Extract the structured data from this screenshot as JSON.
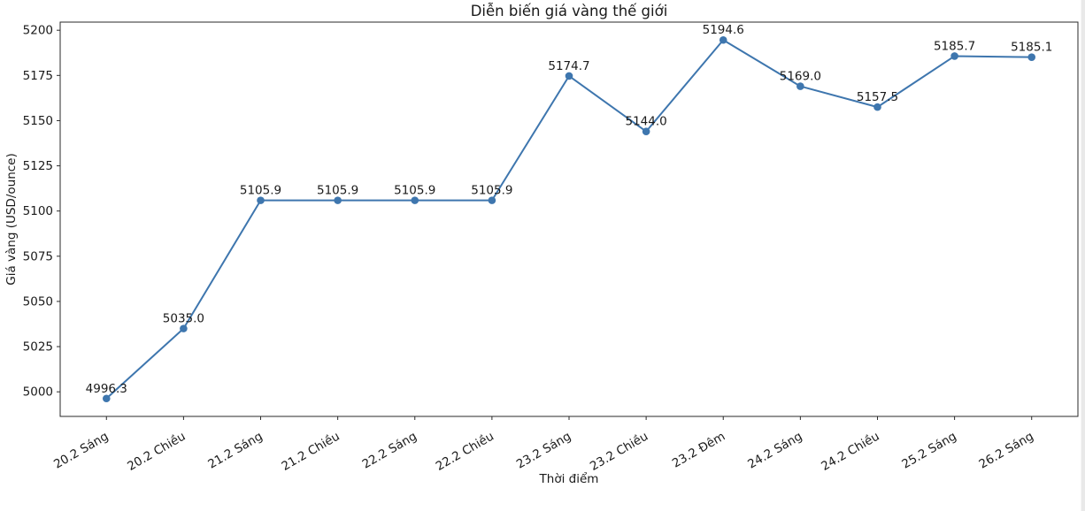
{
  "chart_data": {
    "type": "line",
    "title": "Diễn biến giá vàng thế giới",
    "xlabel": "Thời điểm",
    "ylabel": "Giá vàng (USD/ounce)",
    "categories": [
      "20.2 Sáng",
      "20.2 Chiều",
      "21.2 Sáng",
      "21.2 Chiều",
      "22.2 Sáng",
      "22.2 Chiều",
      "23.2 Sáng",
      "23.2 Chiều",
      "23.2 Đêm",
      "24.2 Sáng",
      "24.2 Chiều",
      "25.2 Sáng",
      "26.2 Sáng"
    ],
    "values": [
      4996.3,
      5035.0,
      5105.9,
      5105.9,
      5105.9,
      5105.9,
      5174.7,
      5144.0,
      5194.6,
      5169.0,
      5157.5,
      5185.7,
      5185.1
    ],
    "point_labels": [
      "4996.3",
      "5035.0",
      "5105.9",
      "5105.9",
      "5105.9",
      "5105.9",
      "5174.7",
      "5144.0",
      "5194.6",
      "5169.0",
      "5157.5",
      "5185.7",
      "5185.1"
    ],
    "y_ticks": [
      5000,
      5025,
      5050,
      5075,
      5100,
      5125,
      5150,
      5175,
      5200
    ],
    "ylim": [
      4986.4,
      5204.5
    ],
    "x_margin": 0.6,
    "x_tick_rotation": 30,
    "line_color": "#3e76ae",
    "marker": "circle",
    "grid": false,
    "legend_position": "none",
    "text_color": "#1a1a1a",
    "spine_color": "#2a2a2a"
  }
}
